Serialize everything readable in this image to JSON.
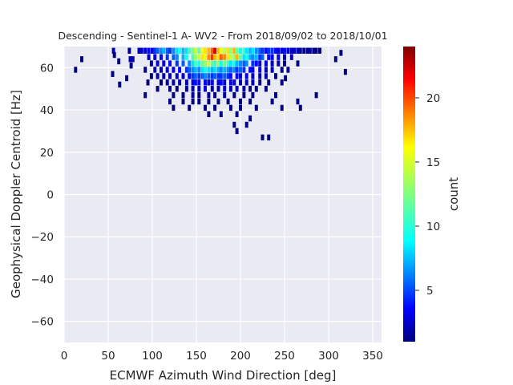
{
  "chart_data": {
    "type": "heatmap",
    "title": "Descending - Sentinel-1 A- WV2 - From 2018/09/02 to 2018/10/01",
    "xlabel": "ECMWF Azimuth Wind Direction [deg]",
    "ylabel": "Geophysical Doppler Centroid [Hz]",
    "xlim": [
      0,
      360
    ],
    "ylim": [
      -70,
      70
    ],
    "xticks": [
      0,
      50,
      100,
      150,
      200,
      250,
      300,
      350
    ],
    "yticks": [
      -60,
      -40,
      -20,
      0,
      20,
      40,
      60
    ],
    "x_bin_width_deg": 3.6,
    "y_bin_width_hz": 2.8,
    "colorbar": {
      "label": "count",
      "range": [
        1,
        24
      ],
      "ticks": [
        5,
        10,
        15,
        20
      ],
      "colormap": "jet"
    },
    "grid": true,
    "background": "#eaeaf2",
    "points": [
      [
        56,
        68,
        2
      ],
      [
        57,
        66,
        1
      ],
      [
        62,
        63,
        1
      ],
      [
        55,
        57,
        1
      ],
      [
        13,
        59,
        1
      ],
      [
        20,
        64,
        1
      ],
      [
        74,
        68,
        1
      ],
      [
        75,
        64,
        2
      ],
      [
        78,
        64,
        2
      ],
      [
        76,
        61,
        1
      ],
      [
        71,
        55,
        1
      ],
      [
        63,
        52,
        1
      ],
      [
        85,
        68,
        2
      ],
      [
        88,
        68,
        3
      ],
      [
        92,
        68,
        3
      ],
      [
        96,
        68,
        4
      ],
      [
        100,
        68,
        3
      ],
      [
        103,
        68,
        5
      ],
      [
        106,
        68,
        6
      ],
      [
        110,
        68,
        7
      ],
      [
        113,
        68,
        8
      ],
      [
        117,
        68,
        6
      ],
      [
        120,
        68,
        5
      ],
      [
        124,
        68,
        7
      ],
      [
        128,
        68,
        9
      ],
      [
        131,
        68,
        10
      ],
      [
        135,
        68,
        8
      ],
      [
        139,
        68,
        9
      ],
      [
        142,
        68,
        11
      ],
      [
        146,
        68,
        12
      ],
      [
        149,
        68,
        14
      ],
      [
        153,
        68,
        12
      ],
      [
        157,
        68,
        15
      ],
      [
        160,
        68,
        16
      ],
      [
        164,
        68,
        17
      ],
      [
        168,
        68,
        19
      ],
      [
        171,
        68,
        22
      ],
      [
        175,
        68,
        17
      ],
      [
        178,
        68,
        15
      ],
      [
        182,
        68,
        14
      ],
      [
        186,
        68,
        16
      ],
      [
        189,
        68,
        13
      ],
      [
        193,
        68,
        17
      ],
      [
        196,
        68,
        12
      ],
      [
        200,
        68,
        10
      ],
      [
        204,
        68,
        11
      ],
      [
        207,
        68,
        9
      ],
      [
        211,
        68,
        8
      ],
      [
        214,
        68,
        9
      ],
      [
        218,
        68,
        7
      ],
      [
        222,
        68,
        6
      ],
      [
        225,
        68,
        5
      ],
      [
        229,
        68,
        4
      ],
      [
        232,
        68,
        5
      ],
      [
        236,
        68,
        5
      ],
      [
        240,
        68,
        4
      ],
      [
        243,
        68,
        3
      ],
      [
        247,
        68,
        3
      ],
      [
        250,
        68,
        4
      ],
      [
        254,
        68,
        3
      ],
      [
        258,
        68,
        2
      ],
      [
        261,
        68,
        3
      ],
      [
        265,
        68,
        2
      ],
      [
        268,
        68,
        2
      ],
      [
        272,
        68,
        1
      ],
      [
        276,
        68,
        1
      ],
      [
        279,
        68,
        2
      ],
      [
        283,
        68,
        1
      ],
      [
        286,
        68,
        1
      ],
      [
        290,
        68,
        1
      ],
      [
        96,
        65,
        2
      ],
      [
        103,
        65,
        3
      ],
      [
        110,
        65,
        4
      ],
      [
        117,
        65,
        5
      ],
      [
        124,
        65,
        6
      ],
      [
        128,
        65,
        7
      ],
      [
        135,
        65,
        8
      ],
      [
        139,
        65,
        10
      ],
      [
        146,
        65,
        11
      ],
      [
        149,
        65,
        13
      ],
      [
        153,
        65,
        14
      ],
      [
        157,
        65,
        16
      ],
      [
        160,
        65,
        15
      ],
      [
        164,
        65,
        18
      ],
      [
        168,
        65,
        20
      ],
      [
        171,
        65,
        17
      ],
      [
        175,
        65,
        16
      ],
      [
        178,
        65,
        19
      ],
      [
        182,
        65,
        18
      ],
      [
        186,
        65,
        16
      ],
      [
        189,
        65,
        14
      ],
      [
        193,
        65,
        13
      ],
      [
        196,
        65,
        17
      ],
      [
        200,
        65,
        12
      ],
      [
        204,
        65,
        9
      ],
      [
        207,
        65,
        10
      ],
      [
        211,
        65,
        8
      ],
      [
        214,
        65,
        7
      ],
      [
        218,
        65,
        8
      ],
      [
        222,
        65,
        5
      ],
      [
        225,
        65,
        6
      ],
      [
        232,
        65,
        4
      ],
      [
        236,
        65,
        3
      ],
      [
        243,
        65,
        3
      ],
      [
        250,
        65,
        2
      ],
      [
        258,
        65,
        2
      ],
      [
        99,
        62,
        2
      ],
      [
        106,
        62,
        3
      ],
      [
        113,
        62,
        3
      ],
      [
        120,
        62,
        4
      ],
      [
        128,
        62,
        5
      ],
      [
        135,
        62,
        6
      ],
      [
        142,
        62,
        7
      ],
      [
        146,
        62,
        9
      ],
      [
        149,
        62,
        11
      ],
      [
        153,
        62,
        10
      ],
      [
        157,
        62,
        12
      ],
      [
        160,
        62,
        13
      ],
      [
        164,
        62,
        14
      ],
      [
        168,
        62,
        12
      ],
      [
        171,
        62,
        11
      ],
      [
        175,
        62,
        13
      ],
      [
        178,
        62,
        10
      ],
      [
        182,
        62,
        12
      ],
      [
        186,
        62,
        11
      ],
      [
        189,
        62,
        9
      ],
      [
        193,
        62,
        10
      ],
      [
        196,
        62,
        8
      ],
      [
        200,
        62,
        7
      ],
      [
        204,
        62,
        6
      ],
      [
        207,
        62,
        7
      ],
      [
        214,
        62,
        5
      ],
      [
        218,
        62,
        4
      ],
      [
        222,
        62,
        3
      ],
      [
        229,
        62,
        3
      ],
      [
        236,
        62,
        2
      ],
      [
        243,
        62,
        2
      ],
      [
        250,
        62,
        1
      ],
      [
        265,
        62,
        1
      ],
      [
        92,
        59,
        1
      ],
      [
        103,
        59,
        2
      ],
      [
        110,
        59,
        2
      ],
      [
        117,
        59,
        3
      ],
      [
        124,
        59,
        3
      ],
      [
        131,
        59,
        4
      ],
      [
        139,
        59,
        5
      ],
      [
        142,
        59,
        6
      ],
      [
        146,
        59,
        7
      ],
      [
        149,
        59,
        8
      ],
      [
        153,
        59,
        7
      ],
      [
        157,
        59,
        9
      ],
      [
        160,
        59,
        10
      ],
      [
        164,
        59,
        9
      ],
      [
        168,
        59,
        8
      ],
      [
        171,
        59,
        9
      ],
      [
        175,
        59,
        8
      ],
      [
        178,
        59,
        7
      ],
      [
        182,
        59,
        8
      ],
      [
        186,
        59,
        7
      ],
      [
        189,
        59,
        6
      ],
      [
        193,
        59,
        7
      ],
      [
        196,
        59,
        5
      ],
      [
        200,
        59,
        6
      ],
      [
        204,
        59,
        5
      ],
      [
        211,
        59,
        4
      ],
      [
        214,
        59,
        3
      ],
      [
        222,
        59,
        3
      ],
      [
        229,
        59,
        2
      ],
      [
        236,
        59,
        2
      ],
      [
        247,
        59,
        1
      ],
      [
        254,
        59,
        1
      ],
      [
        99,
        56,
        1
      ],
      [
        106,
        56,
        2
      ],
      [
        113,
        56,
        2
      ],
      [
        120,
        56,
        2
      ],
      [
        128,
        56,
        3
      ],
      [
        135,
        56,
        3
      ],
      [
        142,
        56,
        4
      ],
      [
        146,
        56,
        5
      ],
      [
        149,
        56,
        6
      ],
      [
        153,
        56,
        5
      ],
      [
        157,
        56,
        6
      ],
      [
        160,
        56,
        7
      ],
      [
        164,
        56,
        6
      ],
      [
        168,
        56,
        5
      ],
      [
        171,
        56,
        6
      ],
      [
        175,
        56,
        5
      ],
      [
        178,
        56,
        5
      ],
      [
        182,
        56,
        6
      ],
      [
        186,
        56,
        5
      ],
      [
        189,
        56,
        4
      ],
      [
        196,
        56,
        4
      ],
      [
        200,
        56,
        3
      ],
      [
        207,
        56,
        3
      ],
      [
        214,
        56,
        2
      ],
      [
        222,
        56,
        2
      ],
      [
        229,
        56,
        2
      ],
      [
        240,
        56,
        1
      ],
      [
        95,
        53,
        1
      ],
      [
        110,
        53,
        1
      ],
      [
        117,
        53,
        2
      ],
      [
        124,
        53,
        2
      ],
      [
        131,
        53,
        2
      ],
      [
        139,
        53,
        3
      ],
      [
        146,
        53,
        3
      ],
      [
        149,
        53,
        4
      ],
      [
        153,
        53,
        4
      ],
      [
        160,
        53,
        4
      ],
      [
        164,
        53,
        3
      ],
      [
        168,
        53,
        4
      ],
      [
        175,
        53,
        3
      ],
      [
        178,
        53,
        4
      ],
      [
        182,
        53,
        3
      ],
      [
        189,
        53,
        3
      ],
      [
        193,
        53,
        3
      ],
      [
        200,
        53,
        2
      ],
      [
        207,
        53,
        2
      ],
      [
        214,
        53,
        2
      ],
      [
        222,
        53,
        1
      ],
      [
        232,
        53,
        1
      ],
      [
        247,
        53,
        1
      ],
      [
        106,
        50,
        1
      ],
      [
        120,
        50,
        1
      ],
      [
        128,
        50,
        1
      ],
      [
        139,
        50,
        2
      ],
      [
        146,
        50,
        2
      ],
      [
        153,
        50,
        2
      ],
      [
        160,
        50,
        3
      ],
      [
        168,
        50,
        2
      ],
      [
        175,
        50,
        2
      ],
      [
        182,
        50,
        3
      ],
      [
        189,
        50,
        2
      ],
      [
        196,
        50,
        2
      ],
      [
        204,
        50,
        2
      ],
      [
        211,
        50,
        1
      ],
      [
        218,
        50,
        1
      ],
      [
        229,
        50,
        1
      ],
      [
        92,
        47,
        1
      ],
      [
        124,
        47,
        1
      ],
      [
        135,
        47,
        1
      ],
      [
        146,
        47,
        2
      ],
      [
        153,
        47,
        1
      ],
      [
        164,
        47,
        2
      ],
      [
        171,
        47,
        1
      ],
      [
        182,
        47,
        2
      ],
      [
        193,
        47,
        1
      ],
      [
        204,
        47,
        1
      ],
      [
        214,
        47,
        1
      ],
      [
        240,
        47,
        1
      ],
      [
        286,
        47,
        1
      ],
      [
        120,
        44,
        1
      ],
      [
        135,
        44,
        1
      ],
      [
        146,
        44,
        1
      ],
      [
        153,
        44,
        1
      ],
      [
        164,
        44,
        1
      ],
      [
        175,
        44,
        1
      ],
      [
        186,
        44,
        1
      ],
      [
        200,
        44,
        1
      ],
      [
        211,
        44,
        1
      ],
      [
        236,
        44,
        1
      ],
      [
        265,
        44,
        1
      ],
      [
        124,
        41,
        1
      ],
      [
        142,
        41,
        1
      ],
      [
        160,
        41,
        1
      ],
      [
        171,
        41,
        1
      ],
      [
        189,
        41,
        1
      ],
      [
        200,
        41,
        1
      ],
      [
        218,
        41,
        1
      ],
      [
        247,
        41,
        1
      ],
      [
        268,
        41,
        1
      ],
      [
        164,
        38,
        1
      ],
      [
        178,
        38,
        1
      ],
      [
        196,
        38,
        1
      ],
      [
        211,
        36,
        1
      ],
      [
        193,
        33,
        1
      ],
      [
        207,
        33,
        1
      ],
      [
        196,
        30,
        1
      ],
      [
        225,
        27,
        1
      ],
      [
        232,
        27,
        1
      ],
      [
        314,
        67,
        1
      ],
      [
        308,
        64,
        1
      ],
      [
        319,
        58,
        1
      ],
      [
        251,
        55,
        1
      ]
    ]
  },
  "colors": {
    "plot_background": "#eaeaf2",
    "grid": "#ffffff",
    "text": "#262626"
  }
}
